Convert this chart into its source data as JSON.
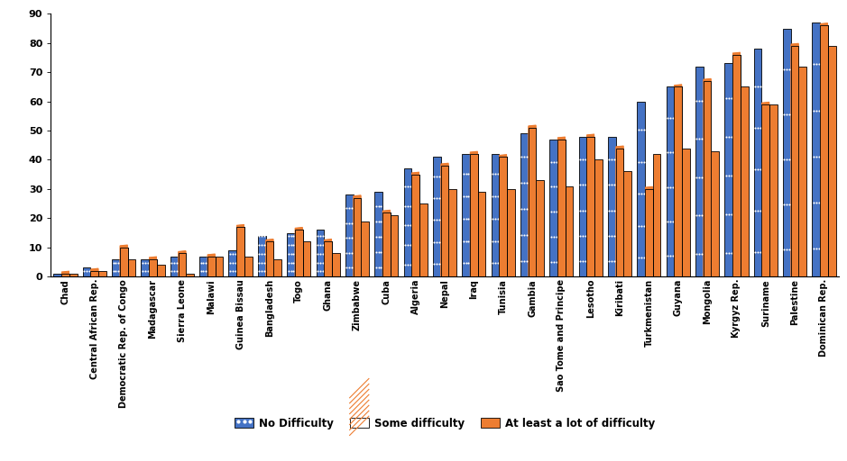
{
  "categories": [
    "Chad",
    "Central African Rep.",
    "Democratic Rep. of Congo",
    "Madagascar",
    "Sierra Leone",
    "Malawi",
    "Guinea Bissau",
    "Bangladesh",
    "Togo",
    "Ghana",
    "Zimbabwe",
    "Cuba",
    "Algeria",
    "Nepal",
    "Iraq",
    "Tunisia",
    "Gambia",
    "Sao Tome and Principe",
    "Lesotho",
    "Kiribati",
    "Turkmenistan",
    "Guyana",
    "Mongolia",
    "Kyrgyz Rep.",
    "Suriname",
    "Palestine",
    "Dominican Rep."
  ],
  "no_difficulty": [
    1,
    3,
    6,
    6,
    7,
    7,
    9,
    14,
    15,
    16,
    28,
    29,
    37,
    41,
    42,
    42,
    49,
    47,
    48,
    48,
    60,
    65,
    72,
    73,
    78,
    85,
    87
  ],
  "some_difficulty": [
    1,
    2,
    10,
    6,
    8,
    7,
    17,
    12,
    16,
    12,
    27,
    22,
    35,
    38,
    42,
    41,
    51,
    47,
    48,
    44,
    30,
    65,
    67,
    76,
    59,
    79,
    86
  ],
  "at_least_lot": [
    1,
    2,
    6,
    4,
    1,
    7,
    7,
    6,
    12,
    8,
    19,
    21,
    25,
    30,
    29,
    30,
    33,
    31,
    40,
    36,
    42,
    44,
    43,
    65,
    59,
    72,
    79
  ],
  "color_blue": "#4472c4",
  "color_orange": "#ed7d31",
  "ylim": [
    0,
    90
  ],
  "yticks": [
    0,
    10,
    20,
    30,
    40,
    50,
    60,
    70,
    80,
    90
  ],
  "bar_width": 0.27,
  "legend_labels": [
    "No Difficulty",
    "Some difficulty",
    "At least a lot of difficulty"
  ],
  "tick_fontsize": 7,
  "ytick_fontsize": 8
}
